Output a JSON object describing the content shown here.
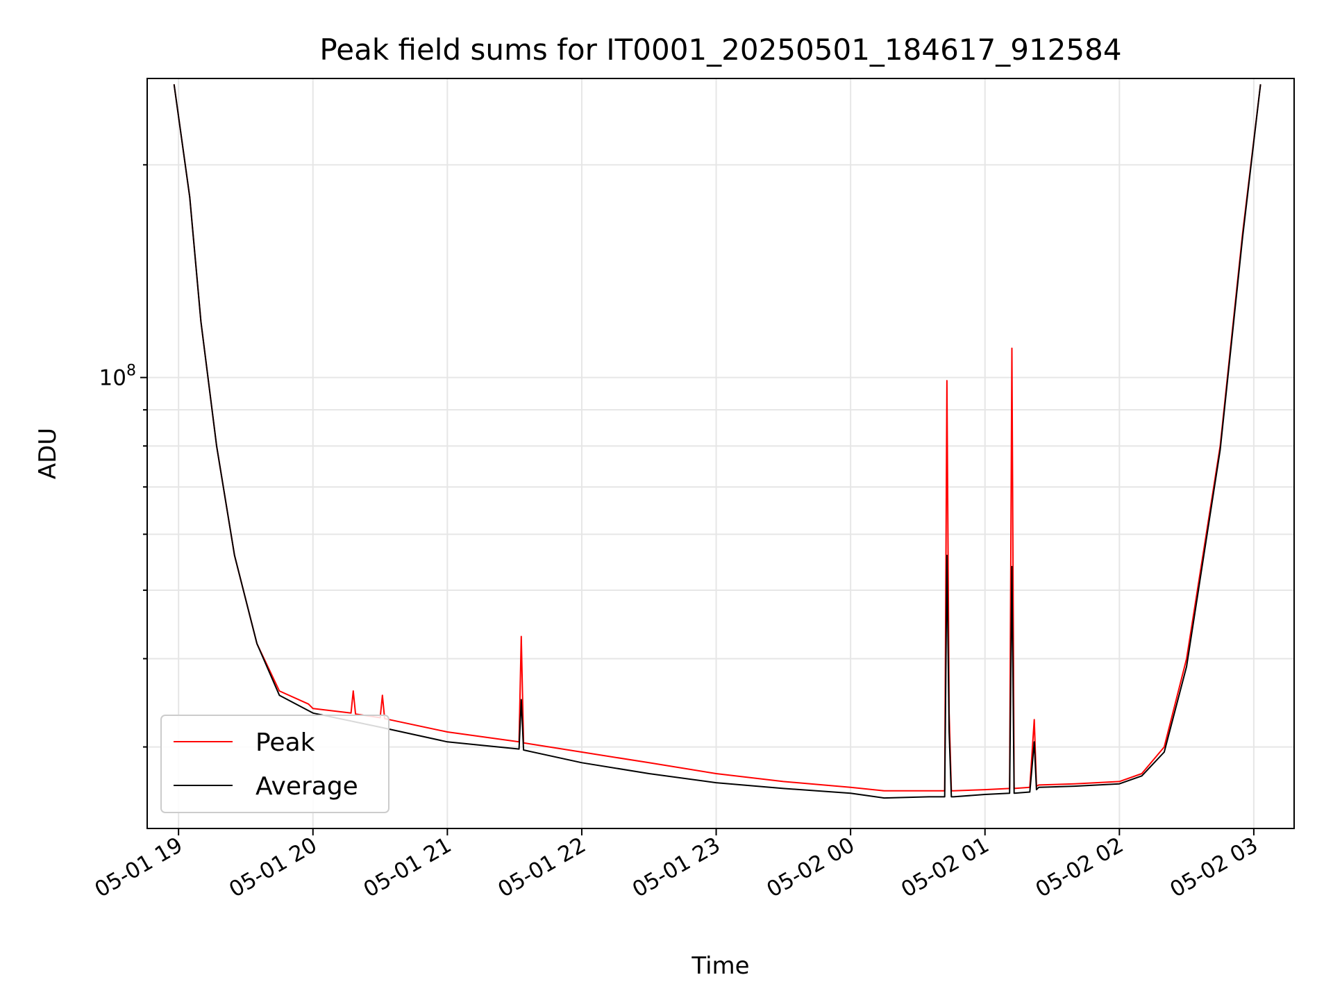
{
  "chart_data": {
    "type": "line",
    "title": "Peak field sums for IT0001_20250501_184617_912584",
    "xlabel": "Time",
    "ylabel": "ADU",
    "yscale": "log",
    "xlim": [
      "2025-05-01 18:46",
      "2025-05-02 03:18"
    ],
    "ylim": [
      23000000,
      265000000
    ],
    "x_ticks": [
      "05-01 19",
      "05-01 20",
      "05-01 21",
      "05-01 22",
      "05-01 23",
      "05-02 00",
      "05-02 01",
      "05-02 02",
      "05-02 03"
    ],
    "y_tick_label": "10^8",
    "grid": true,
    "legend_position": "lower-left",
    "series": [
      {
        "name": "Peak",
        "color": "#ff0000",
        "x": [
          "2025-05-01 18:58",
          "2025-05-01 19:05",
          "2025-05-01 19:10",
          "2025-05-01 19:17",
          "2025-05-01 19:25",
          "2025-05-01 19:35",
          "2025-05-01 19:45",
          "2025-05-01 19:58",
          "2025-05-01 20:00",
          "2025-05-01 20:17",
          "2025-05-01 20:18",
          "2025-05-01 20:19",
          "2025-05-01 20:30",
          "2025-05-01 20:31",
          "2025-05-01 20:32",
          "2025-05-01 21:00",
          "2025-05-01 21:32",
          "2025-05-01 21:33",
          "2025-05-01 21:34",
          "2025-05-01 22:00",
          "2025-05-01 22:30",
          "2025-05-01 23:00",
          "2025-05-01 23:30",
          "2025-05-02 00:00",
          "2025-05-02 00:15",
          "2025-05-02 00:35",
          "2025-05-02 00:42",
          "2025-05-02 00:43",
          "2025-05-02 00:44",
          "2025-05-02 00:45",
          "2025-05-02 00:46",
          "2025-05-02 01:00",
          "2025-05-02 01:11",
          "2025-05-02 01:12",
          "2025-05-02 01:13",
          "2025-05-02 01:20",
          "2025-05-02 01:22",
          "2025-05-02 01:23",
          "2025-05-02 01:24",
          "2025-05-02 01:40",
          "2025-05-02 02:00",
          "2025-05-02 02:10",
          "2025-05-02 02:20",
          "2025-05-02 02:30",
          "2025-05-02 02:45",
          "2025-05-02 02:55",
          "2025-05-02 03:03"
        ],
        "y": [
          260000000,
          180000000,
          120000000,
          80000000,
          56000000,
          42000000,
          36000000,
          34500000,
          34000000,
          33500000,
          36000000,
          33400000,
          33000000,
          35500000,
          32900000,
          31500000,
          30500000,
          43000000,
          30400000,
          29500000,
          28500000,
          27500000,
          26800000,
          26300000,
          26000000,
          26000000,
          26000000,
          99000000,
          33500000,
          26000000,
          26000000,
          26100000,
          26200000,
          110000000,
          26200000,
          26300000,
          32800000,
          26400000,
          26500000,
          26600000,
          26800000,
          27500000,
          30000000,
          40000000,
          80000000,
          160000000,
          260000000
        ]
      },
      {
        "name": "Average",
        "color": "#000000",
        "x": [
          "2025-05-01 18:58",
          "2025-05-01 19:05",
          "2025-05-01 19:10",
          "2025-05-01 19:17",
          "2025-05-01 19:25",
          "2025-05-01 19:35",
          "2025-05-01 19:45",
          "2025-05-01 20:00",
          "2025-05-01 20:30",
          "2025-05-01 21:00",
          "2025-05-01 21:32",
          "2025-05-01 21:33",
          "2025-05-01 21:34",
          "2025-05-01 22:00",
          "2025-05-01 22:30",
          "2025-05-01 23:00",
          "2025-05-01 23:30",
          "2025-05-02 00:00",
          "2025-05-02 00:15",
          "2025-05-02 00:35",
          "2025-05-02 00:42",
          "2025-05-02 00:43",
          "2025-05-02 00:44",
          "2025-05-02 00:45",
          "2025-05-02 00:46",
          "2025-05-02 01:00",
          "2025-05-02 01:11",
          "2025-05-02 01:12",
          "2025-05-02 01:13",
          "2025-05-02 01:20",
          "2025-05-02 01:22",
          "2025-05-02 01:23",
          "2025-05-02 01:24",
          "2025-05-02 01:40",
          "2025-05-02 02:00",
          "2025-05-02 02:10",
          "2025-05-02 02:20",
          "2025-05-02 02:30",
          "2025-05-02 02:45",
          "2025-05-02 02:55",
          "2025-05-02 03:03"
        ],
        "y": [
          260000000,
          180000000,
          120000000,
          80000000,
          56000000,
          42000000,
          35500000,
          33500000,
          32000000,
          30500000,
          29800000,
          35000000,
          29700000,
          28500000,
          27500000,
          26700000,
          26200000,
          25800000,
          25400000,
          25500000,
          25500000,
          56000000,
          31500000,
          25500000,
          25500000,
          25700000,
          25800000,
          54000000,
          25800000,
          25900000,
          30500000,
          26100000,
          26300000,
          26400000,
          26600000,
          27300000,
          29500000,
          39000000,
          79000000,
          158000000,
          260000000
        ]
      }
    ]
  }
}
